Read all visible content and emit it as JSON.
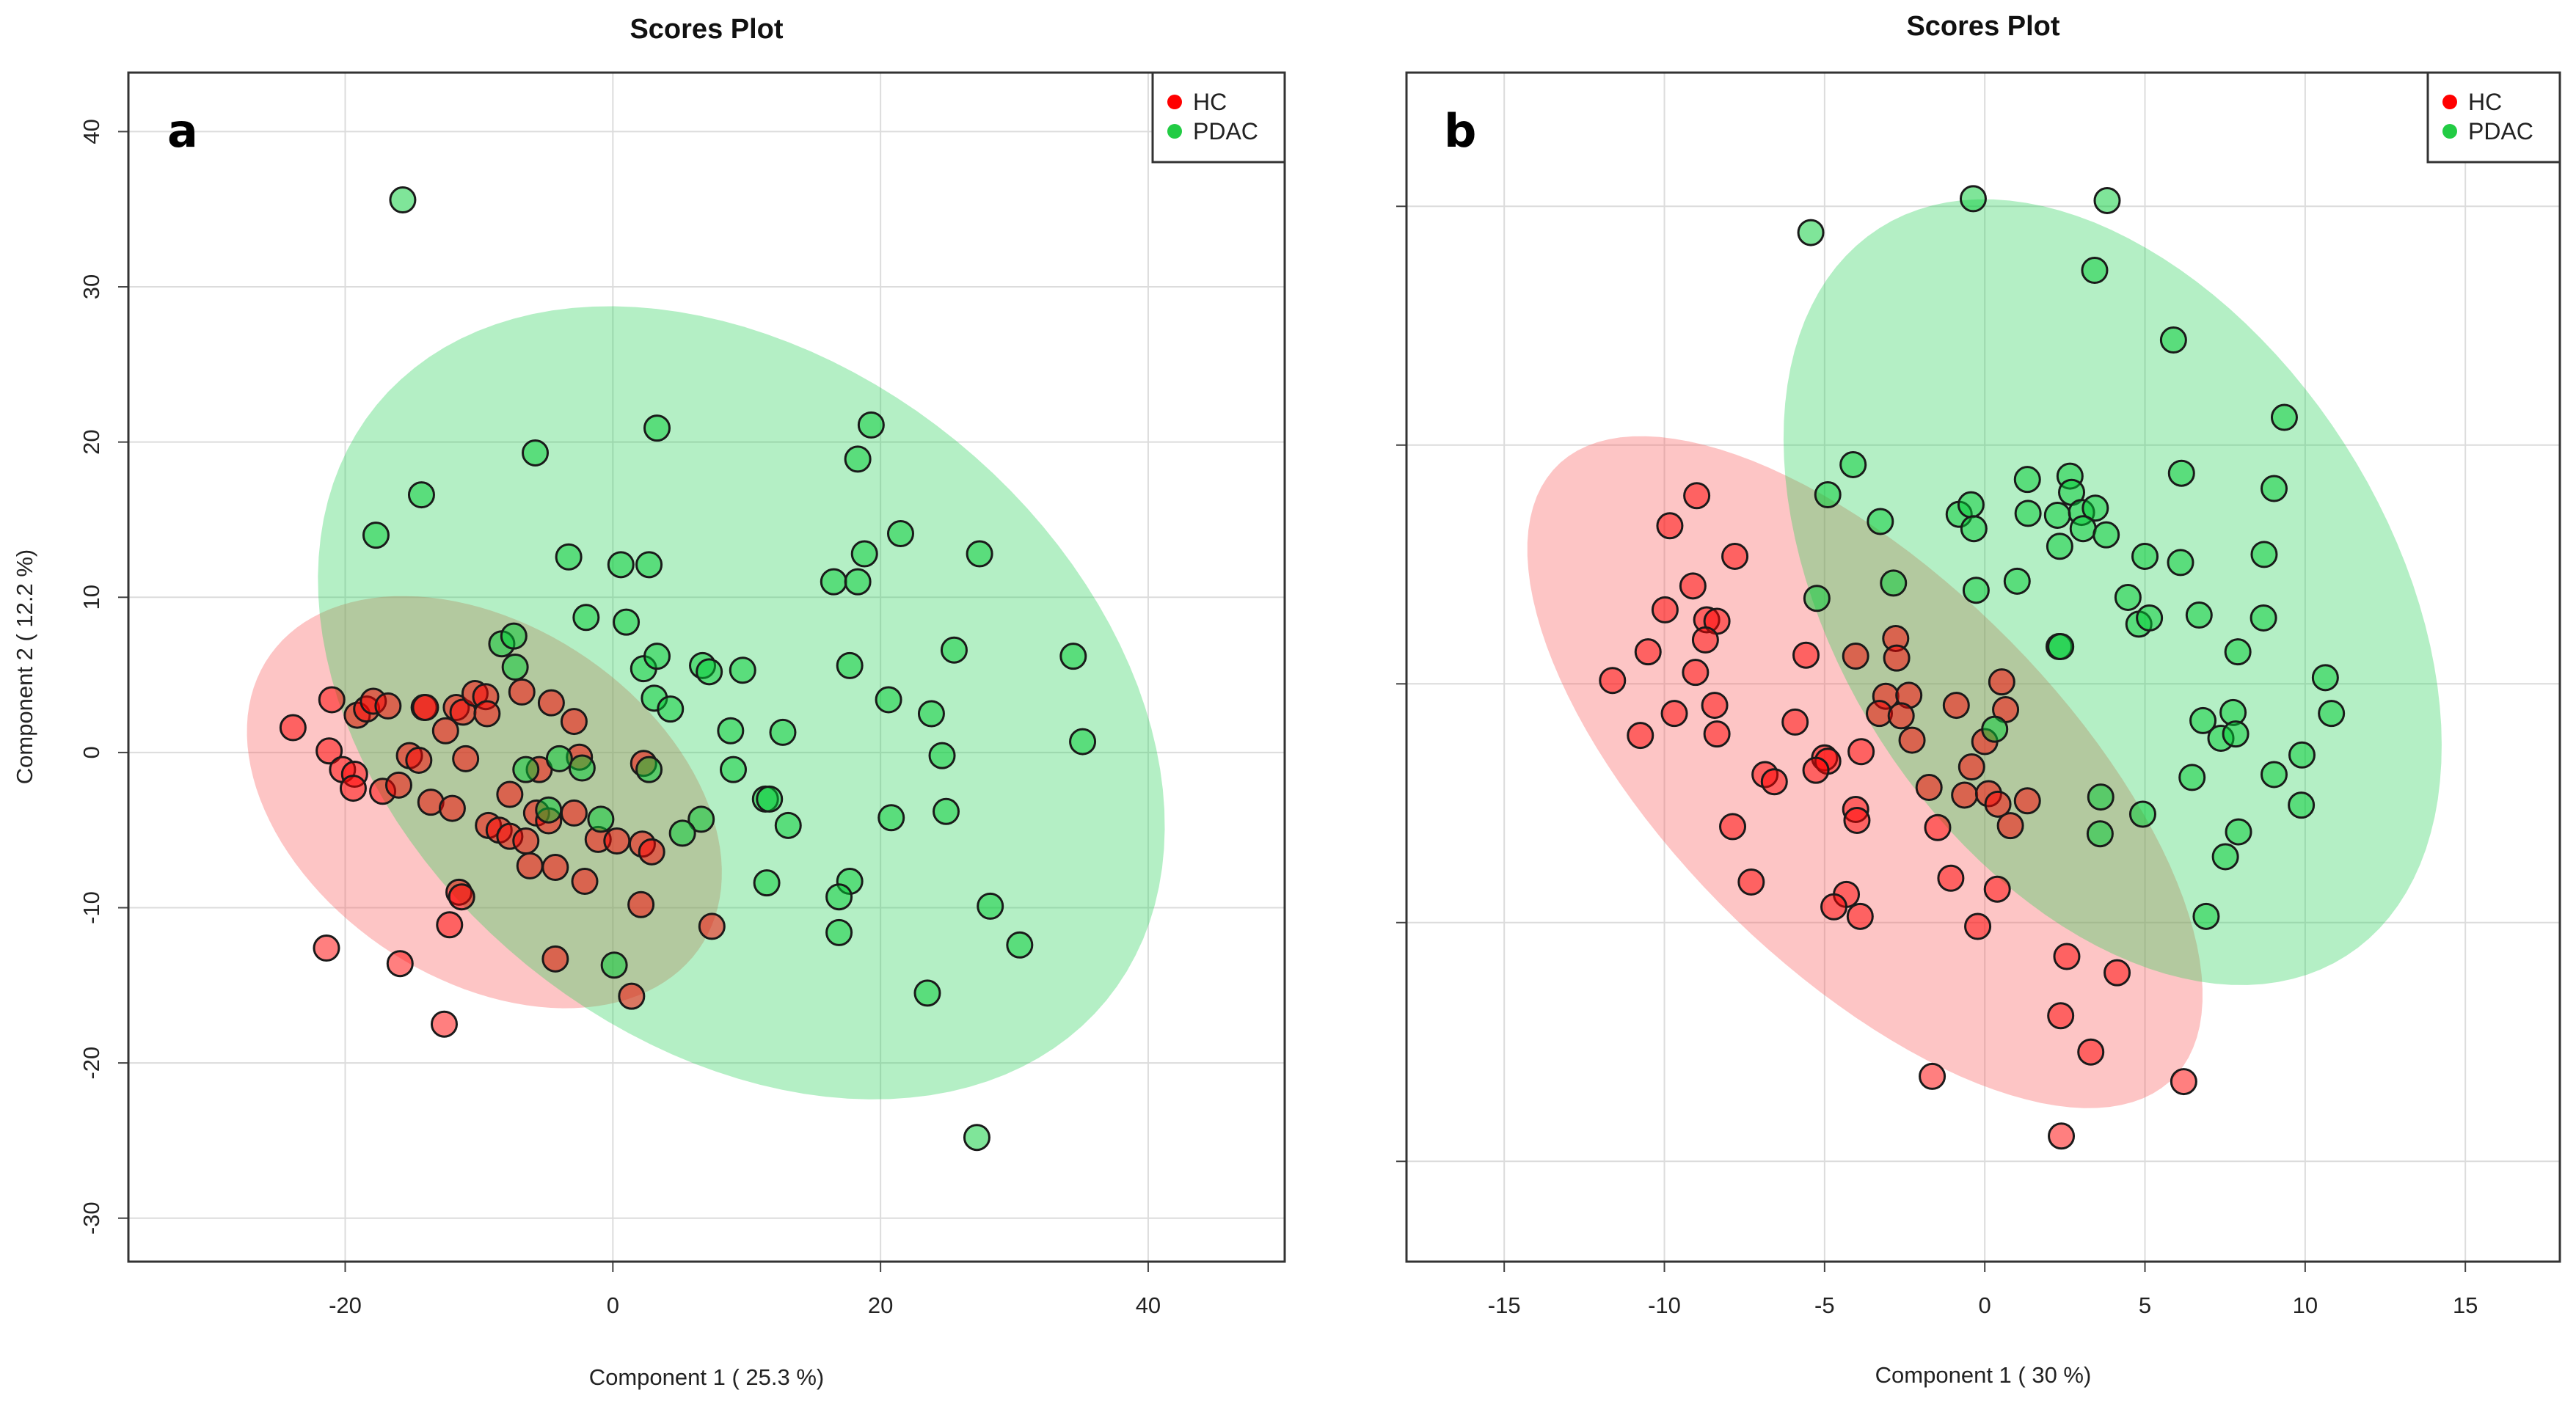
{
  "chart_data": [
    {
      "type": "scatter",
      "panel_label": "a",
      "title": "Scores Plot",
      "xlabel": "Component 1 ( 25.3 %)",
      "ylabel": "Component 2 ( 12.2 %)",
      "xlim": [
        -36.2,
        50.2
      ],
      "ylim": [
        -32.8,
        43.8
      ],
      "xticks": [
        -20,
        0,
        20,
        40
      ],
      "yticks": [
        -30,
        -20,
        -10,
        0,
        10,
        20,
        30,
        40
      ],
      "show_ytick_labels": true,
      "grid": true,
      "legend": {
        "position": "top-right",
        "entries": [
          "HC",
          "PDAC"
        ]
      },
      "series": [
        {
          "name": "HC",
          "color": "#ff0000",
          "ellipse": {
            "center": [
              -9.6,
              -3.2
            ],
            "axis1": [
              16.7,
              -8.5
            ],
            "axis2": [
              -6.0,
              -10.2
            ]
          },
          "points": [
            [
              -23.9,
              1.6
            ],
            [
              -21.0,
              3.4
            ],
            [
              -21.2,
              0.1
            ],
            [
              -20.2,
              -1.1
            ],
            [
              -19.3,
              -1.4
            ],
            [
              -19.4,
              -2.3
            ],
            [
              -19.1,
              2.4
            ],
            [
              -18.4,
              2.8
            ],
            [
              -17.9,
              3.3
            ],
            [
              -16.8,
              3.0
            ],
            [
              -17.2,
              -2.5
            ],
            [
              -16.0,
              -2.1
            ],
            [
              -15.2,
              -0.2
            ],
            [
              -14.5,
              -0.5
            ],
            [
              -14.1,
              2.9
            ],
            [
              -14.0,
              2.9
            ],
            [
              -13.6,
              -3.2
            ],
            [
              -12.5,
              1.4
            ],
            [
              -12.0,
              -3.6
            ],
            [
              -11.7,
              2.9
            ],
            [
              -11.2,
              2.6
            ],
            [
              -11.0,
              -0.4
            ],
            [
              -10.3,
              3.8
            ],
            [
              -9.5,
              3.6
            ],
            [
              -9.4,
              2.5
            ],
            [
              -11.5,
              -9.0
            ],
            [
              -11.3,
              -9.3
            ],
            [
              -12.2,
              -11.1
            ],
            [
              -12.6,
              -17.5
            ],
            [
              -15.9,
              -13.6
            ],
            [
              -21.4,
              -12.6
            ],
            [
              -9.3,
              -4.7
            ],
            [
              -8.5,
              -5.0
            ],
            [
              -7.7,
              -5.4
            ],
            [
              -7.7,
              -2.7
            ],
            [
              -6.8,
              3.9
            ],
            [
              -6.5,
              -5.7
            ],
            [
              -6.2,
              -7.3
            ],
            [
              -5.5,
              -1.1
            ],
            [
              -5.7,
              -3.9
            ],
            [
              -4.8,
              -4.4
            ],
            [
              -4.6,
              3.2
            ],
            [
              -4.3,
              -7.4
            ],
            [
              -2.9,
              -3.9
            ],
            [
              -2.9,
              2.0
            ],
            [
              -2.5,
              -0.3
            ],
            [
              -2.1,
              -8.3
            ],
            [
              -1.1,
              -5.6
            ],
            [
              0.3,
              -5.7
            ],
            [
              -4.3,
              -13.3
            ],
            [
              1.4,
              -15.7
            ],
            [
              2.1,
              -9.8
            ],
            [
              2.3,
              -0.7
            ],
            [
              2.2,
              -5.9
            ],
            [
              2.9,
              -6.4
            ],
            [
              7.4,
              -11.2
            ]
          ]
        },
        {
          "name": "PDAC",
          "color": "#00cc33",
          "ellipse": {
            "center": [
              9.6,
              3.2
            ],
            "axis1": [
              28.8,
              -17.3
            ],
            "axis2": [
              -13.1,
              -18.8
            ]
          },
          "points": [
            [
              -15.7,
              35.6
            ],
            [
              -14.3,
              16.6
            ],
            [
              -17.7,
              14.0
            ],
            [
              -5.8,
              19.3
            ],
            [
              3.3,
              20.9
            ],
            [
              -3.3,
              12.6
            ],
            [
              0.6,
              12.1
            ],
            [
              2.7,
              12.1
            ],
            [
              -2.0,
              8.7
            ],
            [
              1.0,
              8.4
            ],
            [
              -8.3,
              7.0
            ],
            [
              -7.4,
              7.5
            ],
            [
              -7.3,
              5.5
            ],
            [
              2.3,
              5.4
            ],
            [
              3.3,
              6.2
            ],
            [
              3.1,
              3.5
            ],
            [
              4.3,
              2.8
            ],
            [
              6.7,
              5.6
            ],
            [
              7.2,
              5.2
            ],
            [
              9.7,
              5.3
            ],
            [
              8.8,
              1.4
            ],
            [
              12.7,
              1.3
            ],
            [
              9.0,
              -1.1
            ],
            [
              11.4,
              -3.0
            ],
            [
              11.7,
              -3.0
            ],
            [
              13.1,
              -4.7
            ],
            [
              11.5,
              -8.4
            ],
            [
              6.6,
              -4.3
            ],
            [
              5.2,
              -5.2
            ],
            [
              -0.9,
              -4.3
            ],
            [
              -2.3,
              -1.0
            ],
            [
              -4.0,
              -0.4
            ],
            [
              -6.5,
              -1.1
            ],
            [
              -4.8,
              -3.7
            ],
            [
              2.7,
              -1.1
            ],
            [
              0.1,
              -13.7
            ],
            [
              19.3,
              21.1
            ],
            [
              18.3,
              18.9
            ],
            [
              18.8,
              12.8
            ],
            [
              16.5,
              11.0
            ],
            [
              18.3,
              11.0
            ],
            [
              21.5,
              14.1
            ],
            [
              27.4,
              12.8
            ],
            [
              25.5,
              6.6
            ],
            [
              17.7,
              5.6
            ],
            [
              20.6,
              3.4
            ],
            [
              23.8,
              2.5
            ],
            [
              24.6,
              -0.2
            ],
            [
              20.8,
              -4.2
            ],
            [
              24.9,
              -3.8
            ],
            [
              34.4,
              6.2
            ],
            [
              35.1,
              0.7
            ],
            [
              17.7,
              -8.3
            ],
            [
              16.9,
              -9.3
            ],
            [
              16.9,
              -11.6
            ],
            [
              28.2,
              -9.9
            ],
            [
              30.4,
              -12.4
            ],
            [
              23.5,
              -15.5
            ],
            [
              27.2,
              -24.8
            ]
          ]
        }
      ]
    },
    {
      "type": "scatter",
      "panel_label": "b",
      "title": "Scores Plot",
      "xlabel": "Component 1 ( 30 %)",
      "ylabel": "",
      "xlim": [
        -18.05,
        17.95
      ],
      "ylim": [
        -12.1,
        12.8
      ],
      "xticks": [
        -15,
        -10,
        -5,
        0,
        5,
        10,
        15
      ],
      "yticks": [
        -10,
        -5,
        0,
        5,
        10
      ],
      "show_ytick_labels": false,
      "grid": true,
      "legend": {
        "position": "top-right",
        "entries": [
          "HC",
          "PDAC"
        ]
      },
      "series": [
        {
          "name": "HC",
          "color": "#ff0000",
          "ellipse": {
            "center": [
              -3.74,
              -1.85
            ],
            "axis1": [
              9.93,
              -6.16
            ],
            "axis2": [
              -3.53,
              -3.4
            ]
          },
          "points": [
            [
              -8.99,
              3.94
            ],
            [
              -9.83,
              3.31
            ],
            [
              -7.8,
              2.67
            ],
            [
              -9.11,
              2.05
            ],
            [
              -9.98,
              1.55
            ],
            [
              -8.68,
              1.34
            ],
            [
              -8.36,
              1.31
            ],
            [
              -8.72,
              0.92
            ],
            [
              -10.51,
              0.67
            ],
            [
              -9.03,
              0.24
            ],
            [
              -11.62,
              0.07
            ],
            [
              -9.69,
              -0.62
            ],
            [
              -8.43,
              -0.45
            ],
            [
              -10.75,
              -1.08
            ],
            [
              -8.36,
              -1.05
            ],
            [
              -5.58,
              0.6
            ],
            [
              -4.03,
              0.58
            ],
            [
              -2.78,
              0.95
            ],
            [
              -2.75,
              0.54
            ],
            [
              -3.09,
              -0.26
            ],
            [
              -2.37,
              -0.24
            ],
            [
              -3.29,
              -0.62
            ],
            [
              -2.61,
              -0.67
            ],
            [
              -2.27,
              -1.18
            ],
            [
              -0.89,
              -0.45
            ],
            [
              0.53,
              0.04
            ],
            [
              0.65,
              -0.54
            ],
            [
              0.0,
              -1.21
            ],
            [
              -5.92,
              -0.8
            ],
            [
              -3.86,
              -1.42
            ],
            [
              -5.0,
              -1.55
            ],
            [
              -4.9,
              -1.62
            ],
            [
              -5.27,
              -1.81
            ],
            [
              -6.86,
              -1.9
            ],
            [
              -6.57,
              -2.05
            ],
            [
              -0.41,
              -1.74
            ],
            [
              -1.74,
              -2.17
            ],
            [
              -0.63,
              -2.33
            ],
            [
              0.12,
              -2.3
            ],
            [
              0.41,
              -2.52
            ],
            [
              1.33,
              -2.45
            ],
            [
              0.8,
              -2.97
            ],
            [
              -4.03,
              -2.63
            ],
            [
              -3.99,
              -2.86
            ],
            [
              -1.47,
              -3.01
            ],
            [
              -7.87,
              -2.99
            ],
            [
              -7.29,
              -4.15
            ],
            [
              -4.32,
              -4.41
            ],
            [
              -4.71,
              -4.67
            ],
            [
              -3.89,
              -4.87
            ],
            [
              -1.06,
              -4.07
            ],
            [
              0.39,
              -4.3
            ],
            [
              -0.22,
              -5.08
            ],
            [
              2.56,
              -5.71
            ],
            [
              4.13,
              -6.05
            ],
            [
              2.37,
              -6.95
            ],
            [
              3.31,
              -7.71
            ],
            [
              -1.64,
              -8.22
            ],
            [
              6.21,
              -8.33
            ],
            [
              2.39,
              -9.47
            ]
          ]
        },
        {
          "name": "PDAC",
          "color": "#00cc33",
          "ellipse": {
            "center": [
              3.99,
              1.92
            ],
            "axis1": [
              8.33,
              -7.04
            ],
            "axis2": [
              -6.01,
              -4.26
            ]
          },
          "points": [
            [
              -5.43,
              9.45
            ],
            [
              -0.36,
              10.16
            ],
            [
              3.82,
              10.12
            ],
            [
              3.43,
              8.66
            ],
            [
              5.89,
              7.2
            ],
            [
              9.35,
              5.58
            ],
            [
              -4.11,
              4.59
            ],
            [
              -4.9,
              3.96
            ],
            [
              -3.26,
              3.4
            ],
            [
              6.14,
              4.41
            ],
            [
              9.03,
              4.09
            ],
            [
              1.33,
              4.28
            ],
            [
              2.66,
              4.35
            ],
            [
              2.71,
              4.01
            ],
            [
              -0.8,
              3.55
            ],
            [
              -0.43,
              3.75
            ],
            [
              -0.34,
              3.25
            ],
            [
              1.35,
              3.57
            ],
            [
              2.27,
              3.53
            ],
            [
              3.02,
              3.59
            ],
            [
              3.45,
              3.68
            ],
            [
              3.07,
              3.25
            ],
            [
              3.79,
              3.12
            ],
            [
              2.34,
              2.88
            ],
            [
              5.0,
              2.67
            ],
            [
              6.11,
              2.54
            ],
            [
              8.72,
              2.71
            ],
            [
              1.01,
              2.15
            ],
            [
              -0.27,
              1.96
            ],
            [
              -2.85,
              2.11
            ],
            [
              -5.24,
              1.79
            ],
            [
              4.47,
              1.81
            ],
            [
              4.81,
              1.25
            ],
            [
              5.14,
              1.38
            ],
            [
              6.69,
              1.44
            ],
            [
              8.7,
              1.38
            ],
            [
              2.32,
              0.78
            ],
            [
              2.37,
              0.78
            ],
            [
              7.9,
              0.67
            ],
            [
              10.63,
              0.13
            ],
            [
              10.82,
              -0.62
            ],
            [
              6.81,
              -0.77
            ],
            [
              7.75,
              -0.6
            ],
            [
              7.37,
              -1.14
            ],
            [
              7.83,
              -1.05
            ],
            [
              0.31,
              -0.95
            ],
            [
              9.9,
              -1.49
            ],
            [
              9.03,
              -1.9
            ],
            [
              9.88,
              -2.54
            ],
            [
              6.47,
              -1.96
            ],
            [
              3.62,
              -2.37
            ],
            [
              3.6,
              -3.14
            ],
            [
              4.93,
              -2.73
            ],
            [
              7.92,
              -3.1
            ],
            [
              7.51,
              -3.62
            ],
            [
              6.91,
              -4.87
            ]
          ]
        }
      ]
    }
  ]
}
